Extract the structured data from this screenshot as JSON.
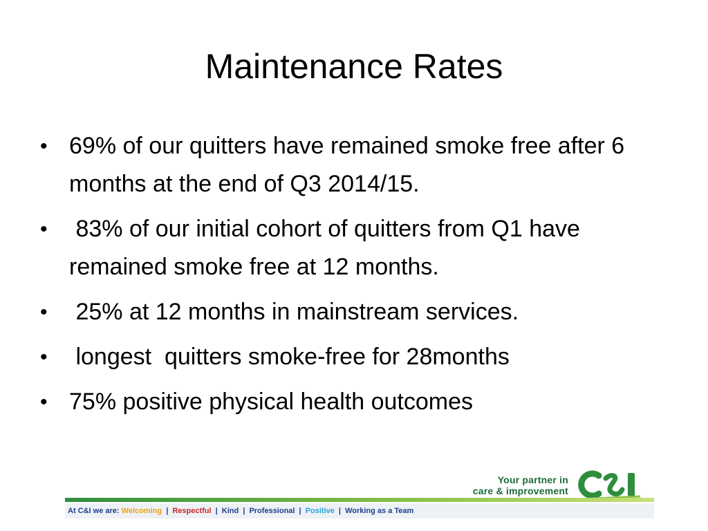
{
  "slide": {
    "title": "Maintenance Rates",
    "bullets": [
      "69% of our quitters have remained smoke free after 6 months at the end of Q3 2014/15.",
      " 83% of our initial cohort of quitters from Q1 have remained smoke free at 12 months.",
      " 25% at 12 months in mainstream services.",
      " longest  quitters smoke-free for 28months",
      "75% positive physical health outcomes"
    ],
    "bullet_glyph": "•"
  },
  "footer": {
    "tagline_line1": "Your partner in",
    "tagline_line2": "care & improvement",
    "logo_text": "C&I",
    "values_prefix": "At C&I we are:",
    "values": [
      "Welcoming",
      "Respectful",
      "Kind",
      "Professional",
      "Positive",
      "Working as a Team"
    ],
    "separator": "|",
    "colors": {
      "brand_green": "#1d6b3a",
      "welcoming": "#e5a21c",
      "respectful": "#c8272b",
      "navy": "#1b3f8b",
      "positive": "#28a0d8"
    }
  }
}
